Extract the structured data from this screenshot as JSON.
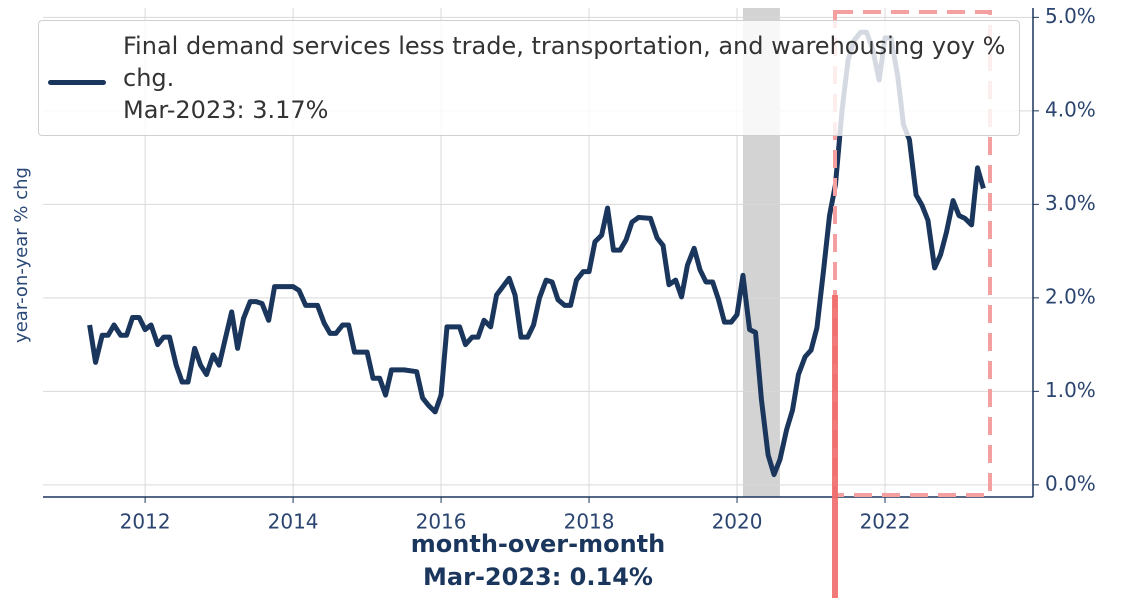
{
  "chart_data": {
    "type": "line",
    "y_label": "year-on-year % chg",
    "annotations": [
      "month-over-month",
      "Mar-2023: 0.14%"
    ],
    "legend_note": "Mar-2023: 3.17%",
    "xlim": [
      2010.62,
      2024.0
    ],
    "ylim": [
      -0.13,
      5.1
    ],
    "xticks": [
      2012,
      2014,
      2016,
      2018,
      2020,
      2022
    ],
    "yticks": [
      {
        "value": 0,
        "label": "0.0%"
      },
      {
        "value": 1,
        "label": "1.0%"
      },
      {
        "value": 2,
        "label": "2.0%"
      },
      {
        "value": 3,
        "label": "3.0%"
      },
      {
        "value": 4,
        "label": "4.0%"
      },
      {
        "value": 5,
        "label": "5.0%"
      }
    ],
    "grid": true,
    "recession": [
      2020.08,
      2020.58
    ],
    "x": [
      2011.25,
      2011.33,
      2011.42,
      2011.5,
      2011.58,
      2011.67,
      2011.75,
      2011.83,
      2011.92,
      2012.0,
      2012.08,
      2012.17,
      2012.25,
      2012.33,
      2012.42,
      2012.5,
      2012.58,
      2012.67,
      2012.75,
      2012.83,
      2012.92,
      2013.0,
      2013.08,
      2013.17,
      2013.25,
      2013.33,
      2013.42,
      2013.5,
      2013.58,
      2013.67,
      2013.75,
      2013.83,
      2014.0,
      2014.08,
      2014.17,
      2014.33,
      2014.42,
      2014.5,
      2014.58,
      2014.67,
      2014.75,
      2014.83,
      2015.0,
      2015.08,
      2015.17,
      2015.25,
      2015.33,
      2015.5,
      2015.67,
      2015.75,
      2015.83,
      2015.92,
      2016.0,
      2016.08,
      2016.25,
      2016.33,
      2016.42,
      2016.5,
      2016.58,
      2016.67,
      2016.75,
      2016.92,
      2017.0,
      2017.08,
      2017.17,
      2017.25,
      2017.33,
      2017.42,
      2017.5,
      2017.58,
      2017.67,
      2017.75,
      2017.83,
      2017.92,
      2018.0,
      2018.08,
      2018.17,
      2018.25,
      2018.33,
      2018.42,
      2018.5,
      2018.58,
      2018.67,
      2018.83,
      2018.92,
      2019.0,
      2019.08,
      2019.17,
      2019.25,
      2019.33,
      2019.42,
      2019.5,
      2019.58,
      2019.67,
      2019.75,
      2019.83,
      2019.92,
      2020.0,
      2020.08,
      2020.17,
      2020.25,
      2020.33,
      2020.42,
      2020.5,
      2020.58,
      2020.67,
      2020.75,
      2020.83,
      2020.92,
      2021.0,
      2021.08,
      2021.17,
      2021.25,
      2021.33,
      2021.42,
      2021.5,
      2021.58,
      2021.67,
      2021.75,
      2021.83,
      2021.92,
      2022.0,
      2022.08,
      2022.17,
      2022.25,
      2022.33,
      2022.42,
      2022.5,
      2022.58,
      2022.67,
      2022.75,
      2022.83,
      2022.92,
      2023.0,
      2023.08,
      2023.17,
      2023.25,
      2023.33
    ],
    "series": [
      {
        "name": "Final demand services less trade, transportation, and warehousing yoy % chg.",
        "color": "#1b365d",
        "values": [
          1.71,
          1.31,
          1.6,
          1.6,
          1.71,
          1.6,
          1.6,
          1.79,
          1.79,
          1.66,
          1.71,
          1.5,
          1.58,
          1.58,
          1.28,
          1.1,
          1.1,
          1.46,
          1.28,
          1.18,
          1.39,
          1.28,
          1.55,
          1.85,
          1.46,
          1.78,
          1.96,
          1.96,
          1.94,
          1.76,
          2.12,
          2.12,
          2.12,
          2.08,
          1.92,
          1.92,
          1.73,
          1.62,
          1.62,
          1.71,
          1.71,
          1.42,
          1.42,
          1.14,
          1.14,
          0.96,
          1.23,
          1.23,
          1.21,
          0.93,
          0.85,
          0.78,
          0.96,
          1.69,
          1.69,
          1.5,
          1.58,
          1.58,
          1.76,
          1.69,
          2.03,
          2.21,
          2.03,
          1.58,
          1.58,
          1.71,
          2.0,
          2.19,
          2.17,
          1.98,
          1.92,
          1.92,
          2.19,
          2.28,
          2.28,
          2.6,
          2.67,
          2.96,
          2.51,
          2.51,
          2.62,
          2.81,
          2.86,
          2.85,
          2.64,
          2.56,
          2.14,
          2.19,
          2.01,
          2.35,
          2.53,
          2.3,
          2.17,
          2.17,
          1.98,
          1.74,
          1.74,
          1.82,
          2.24,
          1.66,
          1.63,
          0.91,
          0.32,
          0.11,
          0.27,
          0.59,
          0.8,
          1.18,
          1.37,
          1.44,
          1.68,
          2.3,
          2.88,
          3.21,
          4.01,
          4.54,
          4.75,
          4.84,
          4.84,
          4.67,
          4.33,
          4.78,
          4.78,
          4.38,
          3.85,
          3.69,
          3.1,
          2.99,
          2.83,
          2.32,
          2.46,
          2.7,
          3.04,
          2.88,
          2.85,
          2.78,
          3.39,
          3.17
        ]
      }
    ]
  }
}
